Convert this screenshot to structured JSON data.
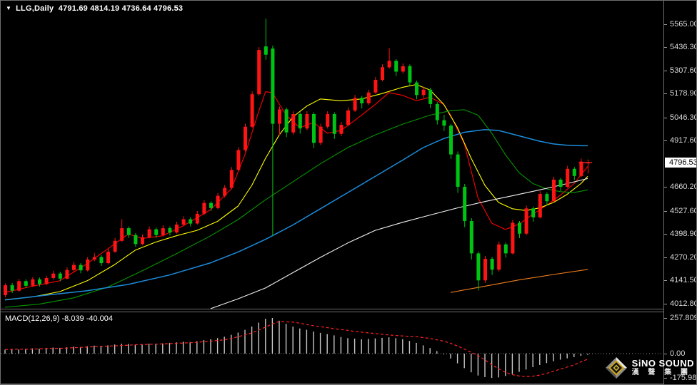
{
  "header": {
    "dropdown_icon": "▼",
    "symbol": "LLG,Daily",
    "ohlc": "4791.69 4814.19 4736.64 4796.53"
  },
  "macd_header": {
    "label": "MACD(12,26,9)",
    "values": "-8.039 -40.004"
  },
  "price_axis": {
    "ticks": [
      {
        "value": 5565.0,
        "label": "5565.00"
      },
      {
        "value": 5436.3,
        "label": "5436.30"
      },
      {
        "value": 5307.6,
        "label": "5307.60"
      },
      {
        "value": 5178.9,
        "label": "5178.90"
      },
      {
        "value": 5046.3,
        "label": "5046.30"
      },
      {
        "value": 4917.6,
        "label": "4917.60"
      },
      {
        "value": 4660.2,
        "label": "4660.20"
      },
      {
        "value": 4527.6,
        "label": "4527.60"
      },
      {
        "value": 4398.9,
        "label": "4398.90"
      },
      {
        "value": 4270.2,
        "label": "4270.20"
      },
      {
        "value": 4141.5,
        "label": "4141.50"
      },
      {
        "value": 4012.8,
        "label": "4012.80"
      }
    ],
    "badge": {
      "value": 4796.53,
      "label": "4796.53"
    }
  },
  "macd_axis": {
    "ticks": [
      {
        "value": 257.809,
        "label": "257.809"
      },
      {
        "value": 0,
        "label": "0.00"
      },
      {
        "value": -175.983,
        "label": "-175.983"
      }
    ]
  },
  "logo": {
    "brand": "SiNO SOUND",
    "brand_cn": "漢 聲 集 團"
  },
  "chart_data": {
    "type": "candlestick-with-macd",
    "symbol": "LLG",
    "timeframe": "Daily",
    "last_price": 4796.53,
    "colors": {
      "up": "#ff1414",
      "down": "#00c414",
      "ma_fast": "#ff0000",
      "ma_mid": "#ffff00",
      "ma_slow": "#089600",
      "ma_long": "#1c8cdc",
      "ma_xlong": "#f0f0f0",
      "ma_xxlong": "#ef7d1a",
      "macd_histogram": "#c8c8c8",
      "macd_signal": "#ff2222",
      "zero_line": "#8a8a8a"
    },
    "candles": [
      [
        4060,
        4125,
        4048,
        4115
      ],
      [
        4115,
        4128,
        4072,
        4085
      ],
      [
        4085,
        4150,
        4080,
        4138
      ],
      [
        4138,
        4148,
        4100,
        4112
      ],
      [
        4112,
        4160,
        4105,
        4148
      ],
      [
        4148,
        4158,
        4108,
        4122
      ],
      [
        4122,
        4168,
        4115,
        4155
      ],
      [
        4155,
        4195,
        4148,
        4180
      ],
      [
        4180,
        4190,
        4138,
        4152
      ],
      [
        4152,
        4215,
        4148,
        4200
      ],
      [
        4200,
        4245,
        4192,
        4228
      ],
      [
        4228,
        4238,
        4182,
        4198
      ],
      [
        4198,
        4272,
        4192,
        4258
      ],
      [
        4258,
        4295,
        4248,
        4272
      ],
      [
        4272,
        4282,
        4222,
        4238
      ],
      [
        4238,
        4318,
        4232,
        4302
      ],
      [
        4302,
        4378,
        4295,
        4362
      ],
      [
        4362,
        4482,
        4355,
        4432
      ],
      [
        4432,
        4442,
        4378,
        4394
      ],
      [
        4394,
        4405,
        4328,
        4344
      ],
      [
        4344,
        4398,
        4338,
        4382
      ],
      [
        4382,
        4442,
        4375,
        4426
      ],
      [
        4426,
        4436,
        4378,
        4394
      ],
      [
        4394,
        4448,
        4388,
        4432
      ],
      [
        4432,
        4442,
        4392,
        4408
      ],
      [
        4408,
        4468,
        4402,
        4452
      ],
      [
        4452,
        4498,
        4445,
        4482
      ],
      [
        4482,
        4492,
        4442,
        4458
      ],
      [
        4458,
        4528,
        4452,
        4512
      ],
      [
        4512,
        4588,
        4505,
        4572
      ],
      [
        4572,
        4582,
        4528,
        4544
      ],
      [
        4544,
        4628,
        4538,
        4612
      ],
      [
        4612,
        4672,
        4602,
        4656
      ],
      [
        4656,
        4772,
        4648,
        4756
      ],
      [
        4756,
        4882,
        4748,
        4866
      ],
      [
        4866,
        5012,
        4858,
        4996
      ],
      [
        4996,
        5192,
        4988,
        5176
      ],
      [
        5176,
        5438,
        5168,
        5422
      ],
      [
        5442,
        5596,
        5368,
        5396
      ],
      [
        5430,
        5446,
        4390,
        5012
      ],
      [
        5012,
        5108,
        4948,
        5092
      ],
      [
        5092,
        5102,
        4938,
        4964
      ],
      [
        4964,
        5082,
        4952,
        5066
      ],
      [
        5066,
        5076,
        4958,
        4986
      ],
      [
        4986,
        5082,
        4976,
        5066
      ],
      [
        5066,
        5076,
        4878,
        4906
      ],
      [
        4906,
        5012,
        4894,
        4996
      ],
      [
        4996,
        5082,
        4986,
        5066
      ],
      [
        5066,
        5076,
        4928,
        4956
      ],
      [
        4956,
        5022,
        4944,
        5006
      ],
      [
        5006,
        5102,
        4998,
        5086
      ],
      [
        5086,
        5172,
        5078,
        5156
      ],
      [
        5156,
        5166,
        5098,
        5126
      ],
      [
        5126,
        5202,
        5118,
        5186
      ],
      [
        5186,
        5272,
        5178,
        5256
      ],
      [
        5256,
        5342,
        5248,
        5326
      ],
      [
        5326,
        5432,
        5318,
        5362
      ],
      [
        5362,
        5372,
        5278,
        5302
      ],
      [
        5302,
        5348,
        5292,
        5332
      ],
      [
        5332,
        5342,
        5222,
        5242
      ],
      [
        5242,
        5252,
        5148,
        5172
      ],
      [
        5172,
        5218,
        5158,
        5202
      ],
      [
        5202,
        5212,
        5098,
        5122
      ],
      [
        5122,
        5132,
        5008,
        5032
      ],
      [
        5032,
        5062,
        4972,
        5002
      ],
      [
        5002,
        5012,
        4818,
        4842
      ],
      [
        4842,
        4858,
        4628,
        4662
      ],
      [
        4662,
        4678,
        4438,
        4472
      ],
      [
        4472,
        4488,
        4258,
        4292
      ],
      [
        4292,
        4302,
        4086,
        4142
      ],
      [
        4142,
        4278,
        4128,
        4262
      ],
      [
        4262,
        4272,
        4172,
        4202
      ],
      [
        4202,
        4358,
        4192,
        4342
      ],
      [
        4342,
        4352,
        4268,
        4292
      ],
      [
        4292,
        4478,
        4286,
        4462
      ],
      [
        4462,
        4472,
        4378,
        4402
      ],
      [
        4402,
        4558,
        4394,
        4542
      ],
      [
        4542,
        4552,
        4468,
        4492
      ],
      [
        4492,
        4638,
        4486,
        4622
      ],
      [
        4622,
        4632,
        4558,
        4582
      ],
      [
        4582,
        4718,
        4576,
        4702
      ],
      [
        4702,
        4712,
        4638,
        4662
      ],
      [
        4662,
        4778,
        4656,
        4762
      ],
      [
        4762,
        4772,
        4698,
        4722
      ],
      [
        4722,
        4818,
        4716,
        4802
      ],
      [
        4791.69,
        4814.19,
        4736.64,
        4796.53
      ]
    ],
    "overlays": [
      {
        "name": "ma-fast-red",
        "color": "#ff0000",
        "width": 1.1,
        "points": [
          [
            0,
            4075
          ],
          [
            4,
            4110
          ],
          [
            8,
            4140
          ],
          [
            12,
            4235
          ],
          [
            16,
            4345
          ],
          [
            18,
            4400
          ],
          [
            20,
            4375
          ],
          [
            23,
            4390
          ],
          [
            26,
            4445
          ],
          [
            30,
            4535
          ],
          [
            33,
            4650
          ],
          [
            35,
            4840
          ],
          [
            37,
            5080
          ],
          [
            38,
            5190
          ],
          [
            39,
            5185
          ],
          [
            41,
            5060
          ],
          [
            43,
            4990
          ],
          [
            45,
            5020
          ],
          [
            47,
            4960
          ],
          [
            49,
            4975
          ],
          [
            51,
            5030
          ],
          [
            54,
            5120
          ],
          [
            56,
            5185
          ],
          [
            58,
            5170
          ],
          [
            60,
            5140
          ],
          [
            62,
            5160
          ],
          [
            64,
            5120
          ],
          [
            65,
            5060
          ],
          [
            67,
            4900
          ],
          [
            69,
            4600
          ],
          [
            71,
            4460
          ],
          [
            73,
            4425
          ],
          [
            75,
            4455
          ],
          [
            77,
            4510
          ],
          [
            79,
            4560
          ],
          [
            81,
            4615
          ],
          [
            83,
            4680
          ],
          [
            85,
            4775
          ]
        ]
      },
      {
        "name": "ma-mid-yellow",
        "color": "#ffff00",
        "width": 1.1,
        "points": [
          [
            0,
            4035
          ],
          [
            4,
            4050
          ],
          [
            8,
            4080
          ],
          [
            12,
            4140
          ],
          [
            16,
            4230
          ],
          [
            19,
            4310
          ],
          [
            22,
            4355
          ],
          [
            25,
            4390
          ],
          [
            28,
            4420
          ],
          [
            31,
            4470
          ],
          [
            34,
            4555
          ],
          [
            36,
            4670
          ],
          [
            38,
            4820
          ],
          [
            40,
            4950
          ],
          [
            42,
            5050
          ],
          [
            44,
            5110
          ],
          [
            46,
            5150
          ],
          [
            49,
            5140
          ],
          [
            52,
            5150
          ],
          [
            55,
            5180
          ],
          [
            58,
            5215
          ],
          [
            60,
            5230
          ],
          [
            62,
            5200
          ],
          [
            64,
            5120
          ],
          [
            66,
            4990
          ],
          [
            68,
            4820
          ],
          [
            70,
            4670
          ],
          [
            72,
            4575
          ],
          [
            74,
            4540
          ],
          [
            76,
            4530
          ],
          [
            78,
            4545
          ],
          [
            80,
            4575
          ],
          [
            82,
            4620
          ],
          [
            84,
            4680
          ],
          [
            85,
            4720
          ]
        ]
      },
      {
        "name": "ma-slow-green",
        "color": "#089600",
        "width": 1.1,
        "points": [
          [
            0,
            3993
          ],
          [
            5,
            4010
          ],
          [
            10,
            4045
          ],
          [
            15,
            4105
          ],
          [
            20,
            4195
          ],
          [
            25,
            4290
          ],
          [
            30,
            4390
          ],
          [
            34,
            4480
          ],
          [
            38,
            4590
          ],
          [
            42,
            4690
          ],
          [
            46,
            4790
          ],
          [
            50,
            4880
          ],
          [
            54,
            4950
          ],
          [
            58,
            5010
          ],
          [
            62,
            5060
          ],
          [
            65,
            5085
          ],
          [
            67,
            5090
          ],
          [
            69,
            5060
          ],
          [
            71,
            4960
          ],
          [
            73,
            4840
          ],
          [
            75,
            4740
          ],
          [
            77,
            4680
          ],
          [
            79,
            4650
          ],
          [
            81,
            4635
          ],
          [
            83,
            4630
          ],
          [
            85,
            4645
          ]
        ]
      },
      {
        "name": "ma-long-blue",
        "color": "#1c8cdc",
        "width": 1.5,
        "points": [
          [
            0,
            4033
          ],
          [
            6,
            4060
          ],
          [
            12,
            4085
          ],
          [
            18,
            4120
          ],
          [
            24,
            4172
          ],
          [
            30,
            4240
          ],
          [
            34,
            4300
          ],
          [
            38,
            4370
          ],
          [
            42,
            4450
          ],
          [
            46,
            4540
          ],
          [
            50,
            4630
          ],
          [
            54,
            4720
          ],
          [
            58,
            4810
          ],
          [
            61,
            4880
          ],
          [
            64,
            4930
          ],
          [
            67,
            4965
          ],
          [
            70,
            4980
          ],
          [
            72,
            4975
          ],
          [
            74,
            4955
          ],
          [
            76,
            4935
          ],
          [
            78,
            4915
          ],
          [
            80,
            4900
          ],
          [
            82,
            4893
          ],
          [
            84,
            4890
          ],
          [
            85,
            4890
          ]
        ]
      },
      {
        "name": "ma-xlong-white",
        "color": "#f0f0f0",
        "width": 1.1,
        "points": [
          [
            30,
            3985
          ],
          [
            34,
            4040
          ],
          [
            38,
            4100
          ],
          [
            42,
            4185
          ],
          [
            46,
            4270
          ],
          [
            50,
            4350
          ],
          [
            54,
            4420
          ],
          [
            58,
            4465
          ],
          [
            62,
            4505
          ],
          [
            66,
            4545
          ],
          [
            70,
            4580
          ],
          [
            74,
            4612
          ],
          [
            78,
            4645
          ],
          [
            82,
            4680
          ],
          [
            85,
            4708
          ]
        ]
      },
      {
        "name": "ma-xxlong-orange",
        "color": "#ef7d1a",
        "width": 1.1,
        "points": [
          [
            65,
            4075
          ],
          [
            70,
            4110
          ],
          [
            75,
            4145
          ],
          [
            80,
            4175
          ],
          [
            85,
            4203
          ]
        ]
      }
    ],
    "macd": {
      "params": "12,26,9",
      "main_value": -8.039,
      "signal_value": -40.004,
      "scale_max": 257.809,
      "scale_min": -175.983,
      "histogram": [
        28,
        32,
        30,
        35,
        38,
        36,
        40,
        44,
        42,
        46,
        50,
        48,
        54,
        58,
        55,
        60,
        66,
        72,
        70,
        66,
        68,
        72,
        70,
        74,
        78,
        82,
        86,
        84,
        90,
        98,
        104,
        112,
        122,
        136,
        152,
        172,
        196,
        224,
        252,
        257.8,
        238,
        215,
        195,
        182,
        172,
        160,
        150,
        142,
        132,
        120,
        112,
        108,
        104,
        106,
        110,
        114,
        118,
        112,
        104,
        92,
        78,
        60,
        40,
        18,
        -5,
        -35,
        -70,
        -105,
        -135,
        -158,
        -170,
        -176,
        -172,
        -162,
        -148,
        -132,
        -115,
        -98,
        -82,
        -68,
        -55,
        -44,
        -34,
        -25,
        -16,
        -8.04
      ],
      "signal": [
        30,
        31,
        32,
        32,
        33,
        34,
        36,
        37,
        38,
        40,
        43,
        45,
        48,
        50,
        52,
        54,
        56,
        59,
        61,
        64,
        66,
        67,
        69,
        70,
        72,
        74,
        77,
        79,
        82,
        86,
        90,
        95,
        100,
        110,
        122,
        135,
        150,
        170,
        192,
        215,
        232,
        230,
        228,
        220,
        210,
        202,
        195,
        188,
        180,
        174,
        168,
        161,
        155,
        150,
        145,
        140,
        135,
        131,
        128,
        125,
        122,
        116,
        110,
        100,
        90,
        74,
        55,
        33,
        10,
        -15,
        -45,
        -80,
        -110,
        -135,
        -152,
        -162,
        -166,
        -163,
        -155,
        -143,
        -128,
        -112,
        -97,
        -82,
        -60,
        -40
      ]
    }
  }
}
